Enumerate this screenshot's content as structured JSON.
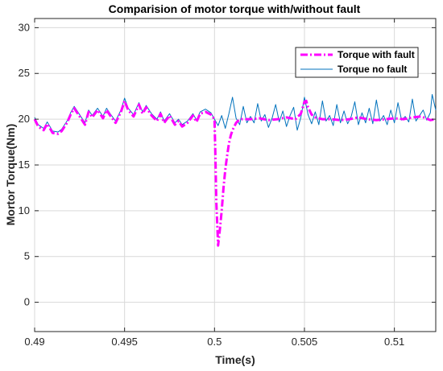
{
  "chart_data": {
    "type": "line",
    "title": "Comparision of motor torque with/without fault",
    "xlabel": "Time(s)",
    "ylabel": "Mortor Torque(Nm)",
    "xlim": [
      0.49,
      0.5123
    ],
    "ylim": [
      -3.2,
      31
    ],
    "x_ticks": [
      0.49,
      0.495,
      0.5,
      0.505,
      0.51
    ],
    "x_tick_labels": [
      "0.49",
      "0.495",
      "0.5",
      "0.505",
      "0.51"
    ],
    "y_ticks": [
      0,
      5,
      10,
      15,
      20,
      25,
      30
    ],
    "y_tick_labels": [
      "0",
      "5",
      "10",
      "15",
      "20",
      "25",
      "30"
    ],
    "grid": true,
    "legend_position": "top-right",
    "series": [
      {
        "name": "Torque with fault",
        "color": "#ff00ff",
        "style": "dash-dot",
        "x": [
          0.49,
          0.4902,
          0.4905,
          0.4907,
          0.491,
          0.4913,
          0.4915,
          0.4918,
          0.492,
          0.4922,
          0.4925,
          0.4928,
          0.493,
          0.4932,
          0.4935,
          0.4938,
          0.494,
          0.4942,
          0.4945,
          0.4948,
          0.495,
          0.4952,
          0.4955,
          0.4958,
          0.496,
          0.4962,
          0.4965,
          0.4968,
          0.497,
          0.4972,
          0.4975,
          0.4978,
          0.498,
          0.4982,
          0.4985,
          0.4988,
          0.499,
          0.4992,
          0.4995,
          0.4998,
          0.5,
          0.50005,
          0.5001,
          0.5002,
          0.5003,
          0.5004,
          0.5005,
          0.5006,
          0.5007,
          0.5008,
          0.5009,
          0.501,
          0.5011,
          0.5012,
          0.5013,
          0.5015,
          0.502,
          0.5025,
          0.503,
          0.5035,
          0.504,
          0.5045,
          0.5048,
          0.505,
          0.5051,
          0.5052,
          0.5054,
          0.5056,
          0.5058,
          0.506,
          0.5065,
          0.507,
          0.5075,
          0.508,
          0.5085,
          0.509,
          0.5095,
          0.51,
          0.5105,
          0.511,
          0.5115,
          0.512,
          0.5123
        ],
        "y": [
          20.0,
          19.2,
          18.8,
          19.5,
          18.5,
          18.4,
          18.7,
          19.6,
          20.5,
          21.2,
          20.3,
          19.4,
          20.8,
          20.2,
          21.0,
          20.1,
          21.0,
          20.4,
          19.6,
          20.8,
          22.0,
          21.0,
          20.3,
          21.6,
          20.6,
          21.3,
          20.4,
          19.8,
          20.6,
          19.6,
          20.4,
          19.4,
          19.8,
          19.2,
          19.6,
          20.4,
          19.7,
          20.6,
          20.8,
          20.5,
          20.0,
          16.0,
          11.0,
          6.2,
          8.0,
          10.0,
          12.5,
          14.5,
          16.0,
          17.3,
          18.2,
          18.8,
          19.2,
          19.6,
          19.8,
          20.0,
          20.0,
          20.1,
          19.9,
          20.0,
          20.2,
          20.0,
          20.6,
          21.9,
          22.0,
          21.3,
          20.5,
          20.2,
          20.1,
          20.0,
          20.0,
          19.9,
          20.0,
          20.2,
          20.0,
          19.9,
          20.0,
          20.1,
          20.0,
          20.2,
          20.3,
          19.9,
          20.0
        ]
      },
      {
        "name": "Torque no fault",
        "color": "#0072bd",
        "style": "solid",
        "x": [
          0.49,
          0.4902,
          0.4905,
          0.4907,
          0.491,
          0.4913,
          0.4915,
          0.4918,
          0.492,
          0.4922,
          0.4925,
          0.4928,
          0.493,
          0.4932,
          0.4935,
          0.4938,
          0.494,
          0.4942,
          0.4945,
          0.4948,
          0.495,
          0.4952,
          0.4955,
          0.4958,
          0.496,
          0.4962,
          0.4965,
          0.4968,
          0.497,
          0.4972,
          0.4975,
          0.4978,
          0.498,
          0.4982,
          0.4985,
          0.4988,
          0.499,
          0.4992,
          0.4995,
          0.4998,
          0.5,
          0.5002,
          0.5004,
          0.5006,
          0.5008,
          0.501,
          0.5012,
          0.5014,
          0.5016,
          0.5018,
          0.502,
          0.5022,
          0.5024,
          0.5026,
          0.5028,
          0.503,
          0.5032,
          0.5034,
          0.5036,
          0.5038,
          0.504,
          0.5042,
          0.5044,
          0.5046,
          0.5048,
          0.505,
          0.5052,
          0.5054,
          0.5056,
          0.5058,
          0.506,
          0.5062,
          0.5064,
          0.5066,
          0.5068,
          0.507,
          0.5072,
          0.5074,
          0.5076,
          0.5078,
          0.508,
          0.5082,
          0.5084,
          0.5086,
          0.5088,
          0.509,
          0.5092,
          0.5094,
          0.5096,
          0.5098,
          0.51,
          0.5102,
          0.5104,
          0.5106,
          0.5108,
          0.511,
          0.5112,
          0.5114,
          0.5116,
          0.5118,
          0.512,
          0.5121,
          0.5123
        ],
        "y": [
          20.2,
          19.4,
          19.0,
          19.7,
          18.7,
          18.6,
          18.9,
          19.8,
          20.7,
          21.4,
          20.5,
          19.6,
          21.0,
          20.4,
          21.2,
          20.3,
          21.2,
          20.6,
          19.8,
          21.0,
          22.3,
          21.2,
          20.5,
          21.8,
          20.8,
          21.5,
          20.6,
          20.0,
          20.8,
          19.8,
          20.6,
          19.6,
          20.0,
          19.4,
          19.8,
          20.6,
          19.9,
          20.8,
          21.1,
          20.7,
          20.0,
          19.3,
          20.4,
          19.0,
          20.6,
          22.4,
          20.1,
          19.4,
          21.4,
          19.6,
          20.3,
          19.6,
          21.7,
          19.8,
          20.5,
          19.1,
          20.1,
          21.6,
          19.7,
          20.9,
          19.2,
          20.4,
          21.3,
          18.8,
          20.2,
          22.4,
          20.5,
          19.5,
          20.8,
          19.4,
          22.0,
          19.8,
          20.4,
          19.3,
          21.6,
          19.6,
          20.9,
          19.5,
          20.3,
          21.9,
          19.4,
          20.7,
          19.6,
          21.2,
          19.5,
          22.1,
          19.8,
          20.4,
          19.4,
          21.0,
          19.6,
          21.8,
          19.9,
          20.3,
          19.7,
          22.2,
          19.8,
          20.4,
          21.0,
          19.9,
          20.7,
          22.7,
          21.0
        ]
      }
    ]
  }
}
